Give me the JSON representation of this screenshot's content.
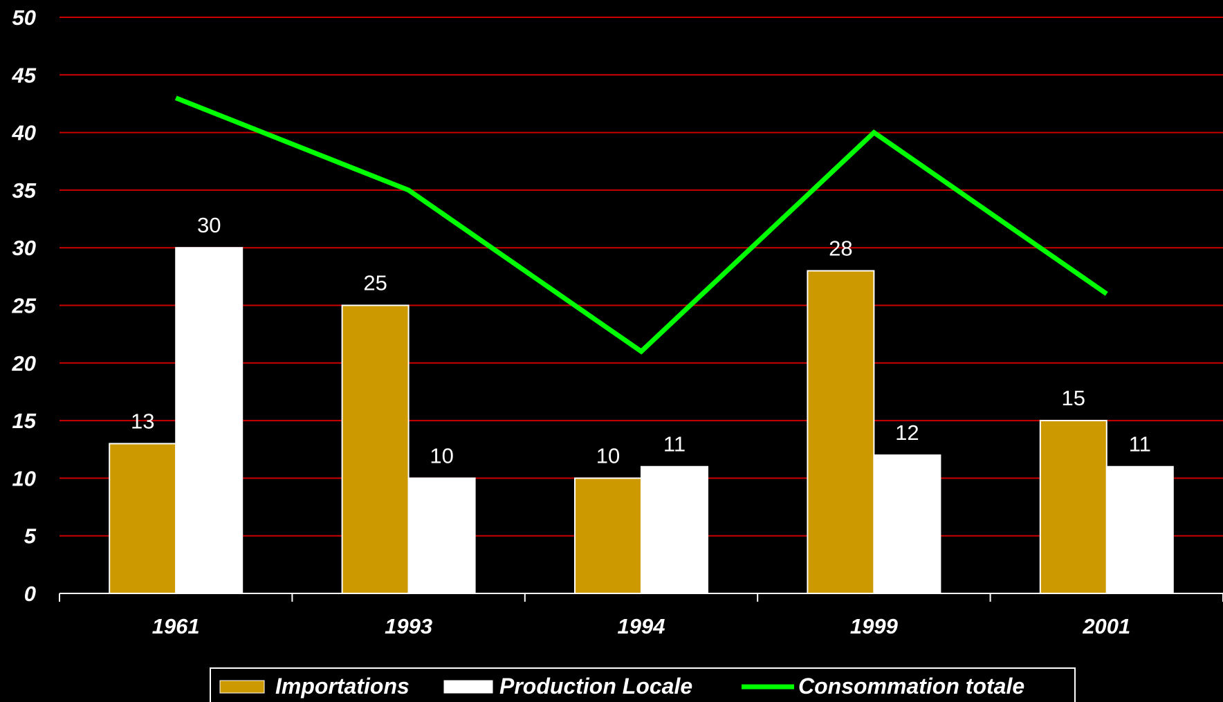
{
  "chart_data": {
    "type": "bar",
    "categories": [
      "1961",
      "1993",
      "1994",
      "1999",
      "2001"
    ],
    "series": [
      {
        "name": "Importations",
        "kind": "bar",
        "color": "#CC9900",
        "values": [
          13,
          25,
          10,
          28,
          15
        ]
      },
      {
        "name": "Production Locale",
        "kind": "bar",
        "color": "#FFFFFF",
        "values": [
          30,
          10,
          11,
          12,
          11
        ]
      },
      {
        "name": "Consommation totale",
        "kind": "line",
        "color": "#00FF00",
        "values": [
          43,
          35,
          21,
          40,
          26
        ]
      }
    ],
    "y_ticks": [
      "0",
      "5",
      "10",
      "15",
      "20",
      "25",
      "30",
      "35",
      "40",
      "45",
      "50"
    ],
    "ylim": [
      0,
      50
    ],
    "grid": true,
    "grid_color": "#CC0000",
    "background": "#000000",
    "legend_position": "bottom-center",
    "data_labels": true,
    "title": "",
    "xlabel": "",
    "ylabel": ""
  }
}
